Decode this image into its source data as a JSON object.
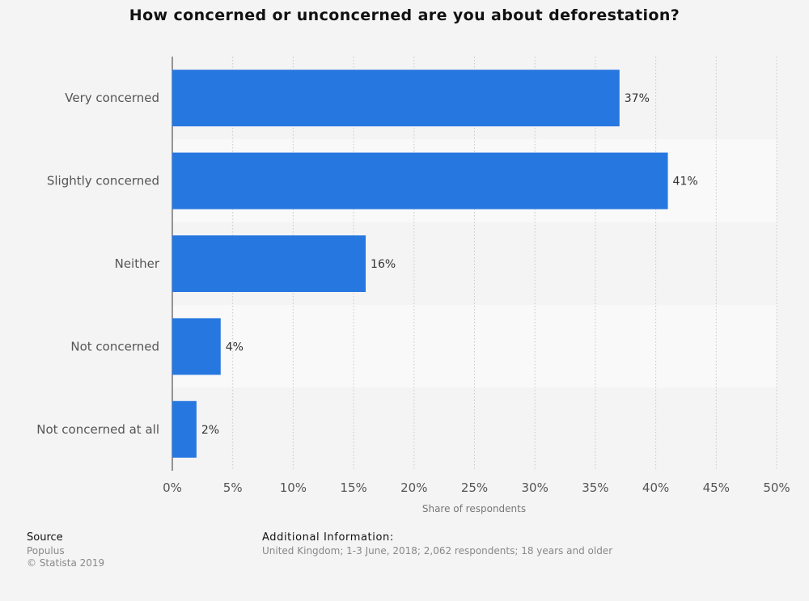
{
  "chart_data": {
    "type": "bar",
    "orientation": "horizontal",
    "title": "How concerned or unconcerned are you about deforestation?",
    "categories": [
      "Very concerned",
      "Slightly concerned",
      "Neither",
      "Not concerned",
      "Not concerned at all"
    ],
    "values": [
      37,
      41,
      16,
      4,
      2
    ],
    "value_labels": [
      "37%",
      "41%",
      "16%",
      "4%",
      "2%"
    ],
    "xlabel": "Share of respondents",
    "xlim": [
      0,
      50
    ],
    "xticks": [
      0,
      5,
      10,
      15,
      20,
      25,
      30,
      35,
      40,
      45,
      50
    ],
    "xtick_labels": [
      "0%",
      "5%",
      "10%",
      "15%",
      "20%",
      "25%",
      "30%",
      "35%",
      "40%",
      "45%",
      "50%"
    ],
    "grid": true,
    "bar_color": "#2777e0"
  },
  "footer": {
    "source_heading": "Source",
    "source_lines": [
      "Populus",
      "© Statista 2019"
    ],
    "info_heading": "Additional Information:",
    "info_text": "United Kingdom; 1-3 June, 2018; 2,062 respondents; 18 years and older"
  }
}
